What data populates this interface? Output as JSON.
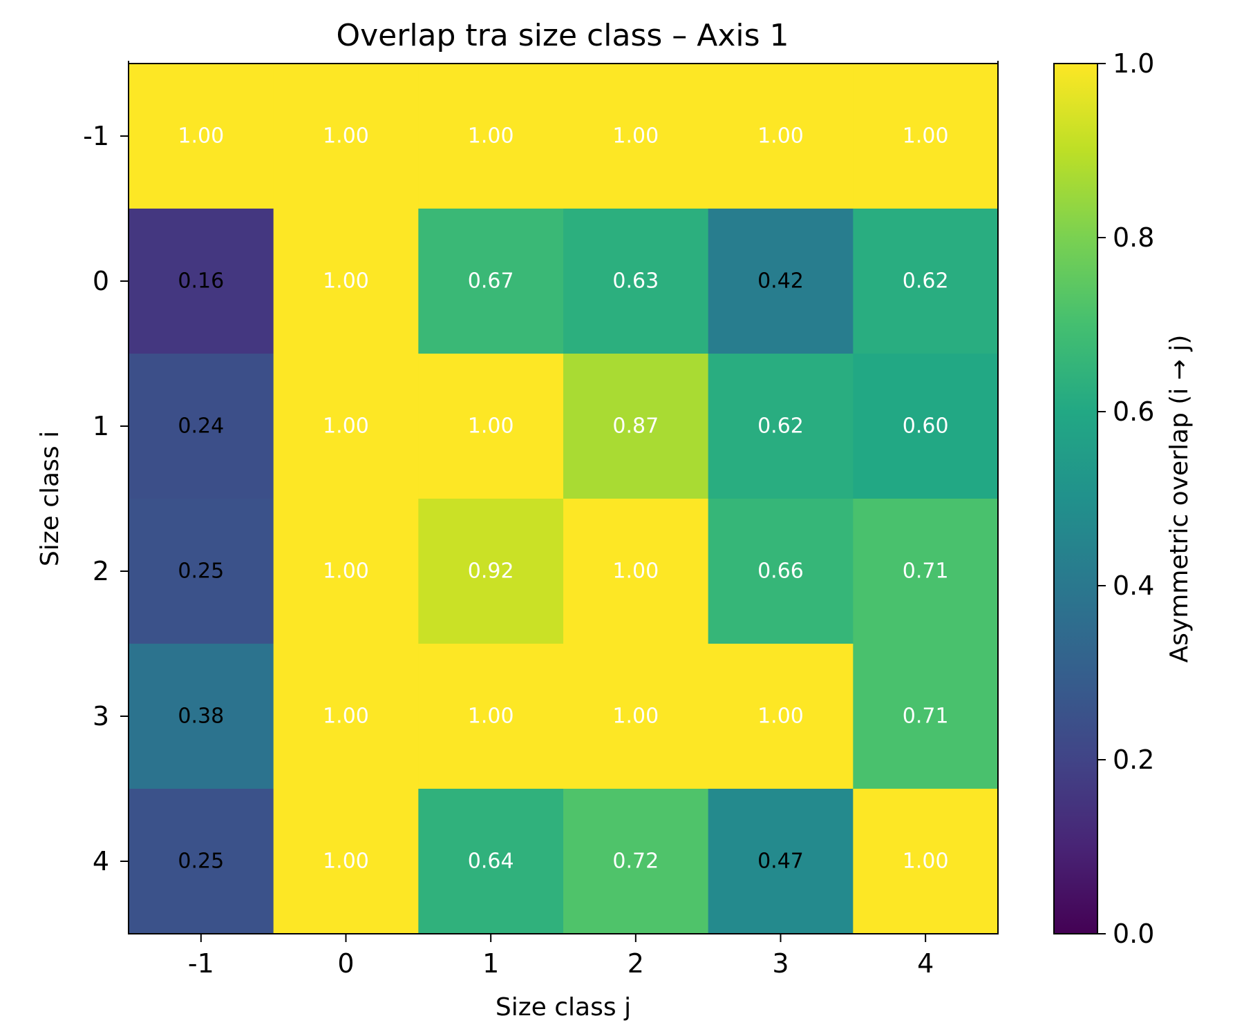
{
  "chart_data": {
    "type": "heatmap",
    "title": "Overlap tra size class – Axis 1",
    "xlabel": "Size class j",
    "ylabel": "Size class i",
    "x_categories": [
      "-1",
      "0",
      "1",
      "2",
      "3",
      "4"
    ],
    "y_categories": [
      "-1",
      "0",
      "1",
      "2",
      "3",
      "4"
    ],
    "values": [
      [
        1.0,
        1.0,
        1.0,
        1.0,
        1.0,
        1.0
      ],
      [
        0.16,
        1.0,
        0.67,
        0.63,
        0.42,
        0.62
      ],
      [
        0.24,
        1.0,
        1.0,
        0.87,
        0.62,
        0.6
      ],
      [
        0.25,
        1.0,
        0.92,
        1.0,
        0.66,
        0.71
      ],
      [
        0.38,
        1.0,
        1.0,
        1.0,
        1.0,
        0.71
      ],
      [
        0.25,
        1.0,
        0.64,
        0.72,
        0.47,
        1.0
      ]
    ],
    "value_format": "0.00",
    "colormap": "viridis",
    "vmin": 0.0,
    "vmax": 1.0,
    "colorbar": {
      "label": "Asymmetric overlap (i → j)",
      "ticks": [
        0.0,
        0.2,
        0.4,
        0.6,
        0.8,
        1.0
      ],
      "tick_labels": [
        "0.0",
        "0.2",
        "0.4",
        "0.6",
        "0.8",
        "1.0"
      ]
    },
    "annotation_colors": {
      "light": "#ffffff",
      "dark": "#000000"
    },
    "annotation_threshold": 0.5
  }
}
